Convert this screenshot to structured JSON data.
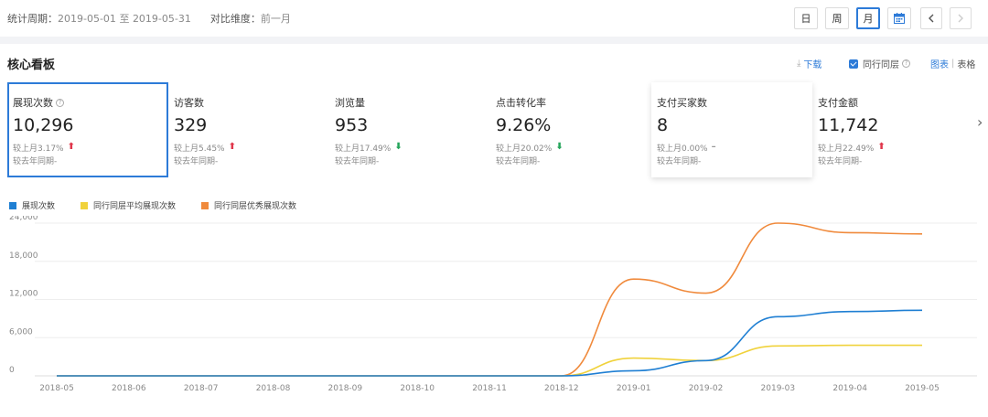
{
  "topbar": {
    "period_label": "统计周期：",
    "period_start": "2019-05-01",
    "period_to": "至",
    "period_end": "2019-05-31",
    "compare_label": "对比维度：",
    "compare_value": "前一月",
    "btn_day": "日",
    "btn_week": "周",
    "btn_month": "月",
    "active_tab": "月",
    "accent_color": "#2d7bd8"
  },
  "section": {
    "title": "核心看板",
    "download": "下载",
    "peer_checkbox": "同行同层",
    "peer_checked": true,
    "view_chart": "图表",
    "view_sep": "|",
    "view_table": "表格"
  },
  "kpis": [
    {
      "label": "展现次数",
      "value": "10,296",
      "cmp": "较上月3.17%",
      "trend": "up",
      "yoy": "较去年同期-",
      "help": "?"
    },
    {
      "label": "访客数",
      "value": "329",
      "cmp": "较上月5.45%",
      "trend": "up",
      "yoy": "较去年同期-"
    },
    {
      "label": "浏览量",
      "value": "953",
      "cmp": "较上月17.49%",
      "trend": "down",
      "yoy": "较去年同期-"
    },
    {
      "label": "点击转化率",
      "value": "9.26%",
      "cmp": "较上月20.02%",
      "trend": "down",
      "yoy": "较去年同期-"
    },
    {
      "label": "支付买家数",
      "value": "8",
      "cmp": "较上月0.00%",
      "trend": "flat",
      "yoy": "较去年同期-"
    },
    {
      "label": "支付金额",
      "value": "11,742",
      "cmp": "较上月22.49%",
      "trend": "up",
      "yoy": "较去年同期-"
    }
  ],
  "trend_glyphs": {
    "up": "⬆",
    "down": "⬇",
    "flat": "–"
  },
  "chart_data": {
    "type": "line",
    "x": [
      "2018-05",
      "2018-06",
      "2018-07",
      "2018-08",
      "2018-09",
      "2018-10",
      "2018-11",
      "2018-12",
      "2019-01",
      "2019-02",
      "2019-03",
      "2019-04",
      "2019-05"
    ],
    "ylim": [
      0,
      24000
    ],
    "yticks": [
      "24,000",
      "18,000",
      "12,000",
      "6,000",
      "0"
    ],
    "ytick_values": [
      24000,
      18000,
      12000,
      6000,
      0
    ],
    "grid": true,
    "legend_position": "top-left",
    "series": [
      {
        "name": "展现次数",
        "color": "#1f7fd3",
        "values": [
          0,
          0,
          0,
          0,
          0,
          0,
          0,
          0,
          800,
          2400,
          9300,
          10100,
          10300
        ]
      },
      {
        "name": "同行同层平均展现次数",
        "color": "#f0d23c",
        "values": [
          0,
          0,
          0,
          0,
          0,
          0,
          0,
          0,
          2800,
          2400,
          4700,
          4800,
          4800
        ]
      },
      {
        "name": "同行同层优秀展现次数",
        "color": "#f08a3c",
        "values": [
          0,
          0,
          0,
          0,
          0,
          0,
          0,
          0,
          15200,
          13000,
          24000,
          22500,
          22300
        ]
      }
    ]
  }
}
